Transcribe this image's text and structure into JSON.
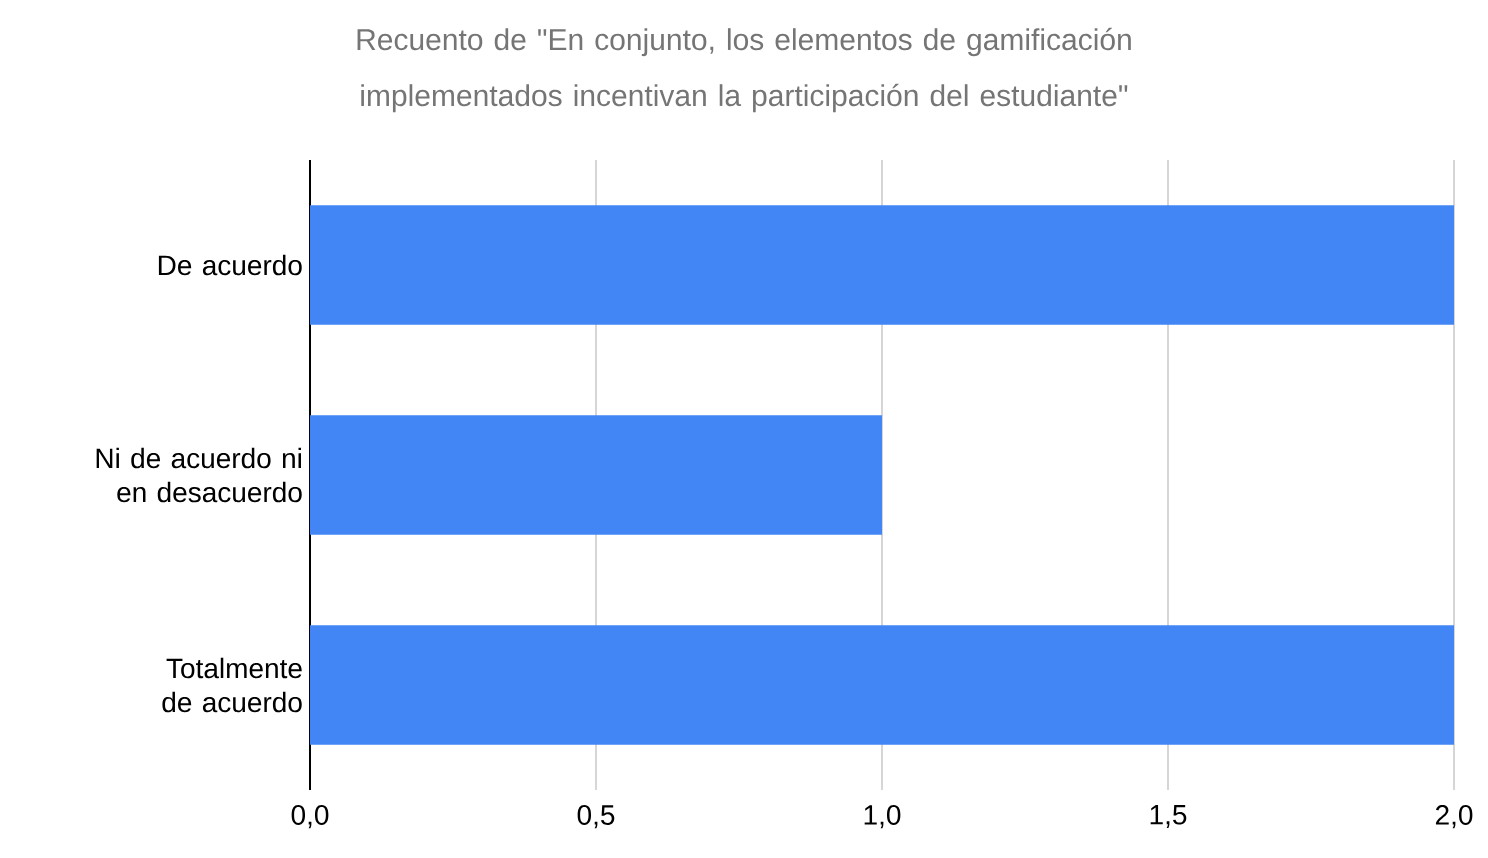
{
  "chart_data": {
    "type": "bar",
    "orientation": "horizontal",
    "title": "Recuento de \"En conjunto, los elementos de gamificación implementados incentivan la participación del estudiante\"",
    "categories": [
      "De acuerdo",
      "Ni de acuerdo ni en desacuerdo",
      "Totalmente de acuerdo"
    ],
    "values": [
      2,
      1,
      2
    ],
    "color": "#4285f4",
    "xlim": [
      0,
      2
    ],
    "xticks": [
      {
        "value": 0,
        "label": "0,0"
      },
      {
        "value": 0.5,
        "label": "0,5"
      },
      {
        "value": 1,
        "label": "1,0"
      },
      {
        "value": 1.5,
        "label": "1,5"
      },
      {
        "value": 2,
        "label": "2,0"
      }
    ],
    "grid": "x"
  }
}
